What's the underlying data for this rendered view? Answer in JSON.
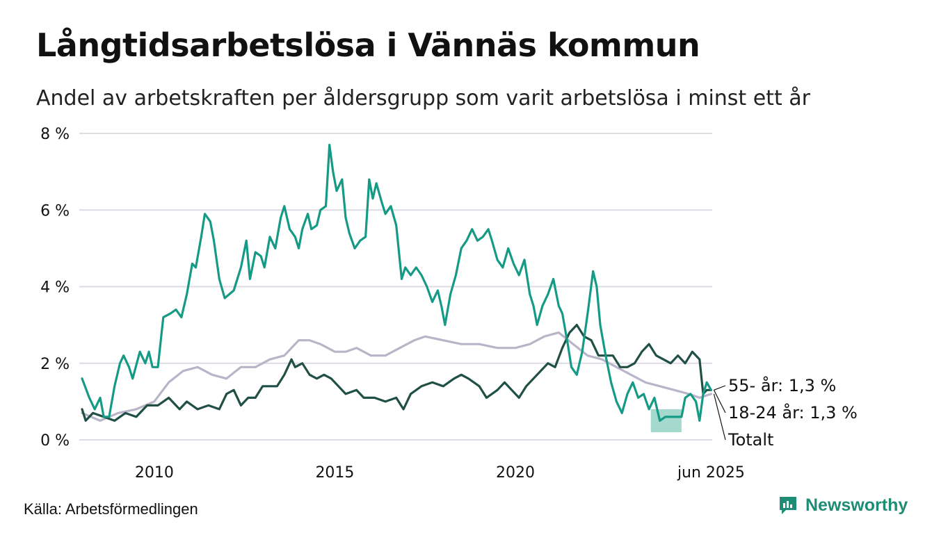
{
  "title": "Långtidsarbetslösa i Vännäs kommun",
  "subtitle": "Andel av arbetskraften per åldersgrupp som varit arbetslösa i minst ett år",
  "source": "Källa: Arbetsförmedlingen",
  "brand": "Newsworthy",
  "colors": {
    "young": "#159a85",
    "old": "#1f4f45",
    "total": "#b8b5c8",
    "grid": "#dddbe3",
    "band": "#8fcfc1",
    "brand": "#1f8c75"
  },
  "chart_data": {
    "type": "line",
    "xlim": [
      2008,
      2025.45
    ],
    "ylim": [
      0,
      8
    ],
    "yticks": [
      {
        "value": 0,
        "label": "0 %"
      },
      {
        "value": 2,
        "label": "2 %"
      },
      {
        "value": 4,
        "label": "4 %"
      },
      {
        "value": 6,
        "label": "6 %"
      },
      {
        "value": 8,
        "label": "8 %"
      }
    ],
    "xticks": [
      {
        "value": 2010,
        "label": "2010"
      },
      {
        "value": 2015,
        "label": "2015"
      },
      {
        "value": 2020,
        "label": "2020"
      },
      {
        "value": 2025.42,
        "label": "jun 2025"
      }
    ],
    "end_labels": [
      {
        "series": "55",
        "text": "55- år: 1,3 %"
      },
      {
        "series": "18",
        "text": "18-24 år: 1,3 %"
      },
      {
        "series": "tot",
        "text": "Totalt"
      }
    ],
    "band": {
      "x": [
        2023.75,
        2024.6
      ],
      "y": [
        0.2,
        0.8
      ]
    },
    "series": [
      {
        "id": "tot",
        "name": "Totalt",
        "points": [
          [
            2008.0,
            0.7
          ],
          [
            2008.5,
            0.5
          ],
          [
            2009.0,
            0.7
          ],
          [
            2009.5,
            0.8
          ],
          [
            2010.0,
            1.0
          ],
          [
            2010.4,
            1.5
          ],
          [
            2010.8,
            1.8
          ],
          [
            2011.2,
            1.9
          ],
          [
            2011.6,
            1.7
          ],
          [
            2012.0,
            1.6
          ],
          [
            2012.4,
            1.9
          ],
          [
            2012.8,
            1.9
          ],
          [
            2013.2,
            2.1
          ],
          [
            2013.6,
            2.2
          ],
          [
            2014.0,
            2.6
          ],
          [
            2014.3,
            2.6
          ],
          [
            2014.6,
            2.5
          ],
          [
            2015.0,
            2.3
          ],
          [
            2015.3,
            2.3
          ],
          [
            2015.6,
            2.4
          ],
          [
            2016.0,
            2.2
          ],
          [
            2016.4,
            2.2
          ],
          [
            2016.8,
            2.4
          ],
          [
            2017.2,
            2.6
          ],
          [
            2017.5,
            2.7
          ],
          [
            2018.0,
            2.6
          ],
          [
            2018.5,
            2.5
          ],
          [
            2019.0,
            2.5
          ],
          [
            2019.5,
            2.4
          ],
          [
            2020.0,
            2.4
          ],
          [
            2020.4,
            2.5
          ],
          [
            2020.8,
            2.7
          ],
          [
            2021.2,
            2.8
          ],
          [
            2021.6,
            2.5
          ],
          [
            2022.0,
            2.2
          ],
          [
            2022.4,
            2.1
          ],
          [
            2022.8,
            1.9
          ],
          [
            2023.2,
            1.7
          ],
          [
            2023.6,
            1.5
          ],
          [
            2024.0,
            1.4
          ],
          [
            2024.4,
            1.3
          ],
          [
            2024.8,
            1.2
          ],
          [
            2025.1,
            1.1
          ],
          [
            2025.42,
            1.2
          ]
        ]
      },
      {
        "id": "55",
        "name": "55- år",
        "points": [
          [
            2008.0,
            0.8
          ],
          [
            2008.1,
            0.5
          ],
          [
            2008.3,
            0.7
          ],
          [
            2008.6,
            0.6
          ],
          [
            2008.9,
            0.5
          ],
          [
            2009.2,
            0.7
          ],
          [
            2009.5,
            0.6
          ],
          [
            2009.8,
            0.9
          ],
          [
            2010.1,
            0.9
          ],
          [
            2010.4,
            1.1
          ],
          [
            2010.7,
            0.8
          ],
          [
            2010.9,
            1.0
          ],
          [
            2011.2,
            0.8
          ],
          [
            2011.5,
            0.9
          ],
          [
            2011.8,
            0.8
          ],
          [
            2012.0,
            1.2
          ],
          [
            2012.2,
            1.3
          ],
          [
            2012.4,
            0.9
          ],
          [
            2012.6,
            1.1
          ],
          [
            2012.8,
            1.1
          ],
          [
            2013.0,
            1.4
          ],
          [
            2013.2,
            1.4
          ],
          [
            2013.4,
            1.4
          ],
          [
            2013.6,
            1.7
          ],
          [
            2013.8,
            2.1
          ],
          [
            2013.9,
            1.9
          ],
          [
            2014.1,
            2.0
          ],
          [
            2014.3,
            1.7
          ],
          [
            2014.5,
            1.6
          ],
          [
            2014.7,
            1.7
          ],
          [
            2014.9,
            1.6
          ],
          [
            2015.1,
            1.4
          ],
          [
            2015.3,
            1.2
          ],
          [
            2015.6,
            1.3
          ],
          [
            2015.8,
            1.1
          ],
          [
            2016.1,
            1.1
          ],
          [
            2016.4,
            1.0
          ],
          [
            2016.7,
            1.1
          ],
          [
            2016.9,
            0.8
          ],
          [
            2017.1,
            1.2
          ],
          [
            2017.4,
            1.4
          ],
          [
            2017.7,
            1.5
          ],
          [
            2018.0,
            1.4
          ],
          [
            2018.3,
            1.6
          ],
          [
            2018.5,
            1.7
          ],
          [
            2018.7,
            1.6
          ],
          [
            2019.0,
            1.4
          ],
          [
            2019.2,
            1.1
          ],
          [
            2019.5,
            1.3
          ],
          [
            2019.7,
            1.5
          ],
          [
            2019.9,
            1.3
          ],
          [
            2020.1,
            1.1
          ],
          [
            2020.3,
            1.4
          ],
          [
            2020.5,
            1.6
          ],
          [
            2020.7,
            1.8
          ],
          [
            2020.9,
            2.0
          ],
          [
            2021.1,
            1.9
          ],
          [
            2021.3,
            2.4
          ],
          [
            2021.5,
            2.8
          ],
          [
            2021.7,
            3.0
          ],
          [
            2021.9,
            2.7
          ],
          [
            2022.1,
            2.6
          ],
          [
            2022.3,
            2.2
          ],
          [
            2022.5,
            2.2
          ],
          [
            2022.7,
            2.2
          ],
          [
            2022.9,
            1.9
          ],
          [
            2023.1,
            1.9
          ],
          [
            2023.3,
            2.0
          ],
          [
            2023.5,
            2.3
          ],
          [
            2023.7,
            2.5
          ],
          [
            2023.9,
            2.2
          ],
          [
            2024.1,
            2.1
          ],
          [
            2024.3,
            2.0
          ],
          [
            2024.5,
            2.2
          ],
          [
            2024.7,
            2.0
          ],
          [
            2024.9,
            2.3
          ],
          [
            2025.1,
            2.1
          ],
          [
            2025.2,
            1.2
          ],
          [
            2025.3,
            1.3
          ],
          [
            2025.42,
            1.3
          ]
        ]
      },
      {
        "id": "18",
        "name": "18-24 år",
        "points": [
          [
            2008.0,
            1.6
          ],
          [
            2008.2,
            1.1
          ],
          [
            2008.35,
            0.8
          ],
          [
            2008.5,
            1.1
          ],
          [
            2008.6,
            0.6
          ],
          [
            2008.75,
            0.6
          ],
          [
            2008.9,
            1.4
          ],
          [
            2009.05,
            2.0
          ],
          [
            2009.15,
            2.2
          ],
          [
            2009.3,
            1.9
          ],
          [
            2009.4,
            1.6
          ],
          [
            2009.6,
            2.3
          ],
          [
            2009.75,
            2.0
          ],
          [
            2009.85,
            2.3
          ],
          [
            2009.95,
            1.9
          ],
          [
            2010.1,
            1.9
          ],
          [
            2010.25,
            3.2
          ],
          [
            2010.45,
            3.3
          ],
          [
            2010.6,
            3.4
          ],
          [
            2010.75,
            3.2
          ],
          [
            2010.9,
            3.8
          ],
          [
            2011.05,
            4.6
          ],
          [
            2011.15,
            4.5
          ],
          [
            2011.3,
            5.3
          ],
          [
            2011.4,
            5.9
          ],
          [
            2011.55,
            5.7
          ],
          [
            2011.65,
            5.2
          ],
          [
            2011.8,
            4.2
          ],
          [
            2011.95,
            3.7
          ],
          [
            2012.2,
            3.9
          ],
          [
            2012.4,
            4.5
          ],
          [
            2012.55,
            5.2
          ],
          [
            2012.65,
            4.2
          ],
          [
            2012.8,
            4.9
          ],
          [
            2012.95,
            4.8
          ],
          [
            2013.05,
            4.5
          ],
          [
            2013.2,
            5.3
          ],
          [
            2013.35,
            5.0
          ],
          [
            2013.5,
            5.8
          ],
          [
            2013.6,
            6.1
          ],
          [
            2013.75,
            5.5
          ],
          [
            2013.9,
            5.3
          ],
          [
            2014.0,
            5.0
          ],
          [
            2014.1,
            5.5
          ],
          [
            2014.25,
            5.9
          ],
          [
            2014.35,
            5.5
          ],
          [
            2014.5,
            5.6
          ],
          [
            2014.6,
            6.0
          ],
          [
            2014.75,
            6.1
          ],
          [
            2014.85,
            7.7
          ],
          [
            2014.95,
            7.0
          ],
          [
            2015.05,
            6.5
          ],
          [
            2015.2,
            6.8
          ],
          [
            2015.3,
            5.8
          ],
          [
            2015.4,
            5.4
          ],
          [
            2015.55,
            5.0
          ],
          [
            2015.7,
            5.2
          ],
          [
            2015.85,
            5.3
          ],
          [
            2015.95,
            6.8
          ],
          [
            2016.05,
            6.3
          ],
          [
            2016.15,
            6.7
          ],
          [
            2016.3,
            6.2
          ],
          [
            2016.4,
            5.9
          ],
          [
            2016.55,
            6.1
          ],
          [
            2016.7,
            5.6
          ],
          [
            2016.85,
            4.2
          ],
          [
            2016.95,
            4.5
          ],
          [
            2017.1,
            4.3
          ],
          [
            2017.25,
            4.5
          ],
          [
            2017.4,
            4.3
          ],
          [
            2017.55,
            4.0
          ],
          [
            2017.7,
            3.6
          ],
          [
            2017.85,
            3.9
          ],
          [
            2017.95,
            3.5
          ],
          [
            2018.05,
            3.0
          ],
          [
            2018.2,
            3.8
          ],
          [
            2018.35,
            4.3
          ],
          [
            2018.5,
            5.0
          ],
          [
            2018.65,
            5.2
          ],
          [
            2018.8,
            5.5
          ],
          [
            2018.95,
            5.2
          ],
          [
            2019.1,
            5.3
          ],
          [
            2019.25,
            5.5
          ],
          [
            2019.35,
            5.2
          ],
          [
            2019.5,
            4.7
          ],
          [
            2019.65,
            4.5
          ],
          [
            2019.8,
            5.0
          ],
          [
            2019.95,
            4.6
          ],
          [
            2020.1,
            4.3
          ],
          [
            2020.25,
            4.7
          ],
          [
            2020.4,
            3.8
          ],
          [
            2020.5,
            3.5
          ],
          [
            2020.6,
            3.0
          ],
          [
            2020.75,
            3.5
          ],
          [
            2020.9,
            3.8
          ],
          [
            2021.05,
            4.2
          ],
          [
            2021.2,
            3.5
          ],
          [
            2021.3,
            3.3
          ],
          [
            2021.45,
            2.5
          ],
          [
            2021.55,
            1.9
          ],
          [
            2021.7,
            1.7
          ],
          [
            2021.85,
            2.3
          ],
          [
            2022.0,
            3.3
          ],
          [
            2022.15,
            4.4
          ],
          [
            2022.25,
            4.0
          ],
          [
            2022.35,
            3.0
          ],
          [
            2022.5,
            2.2
          ],
          [
            2022.65,
            1.5
          ],
          [
            2022.8,
            1.0
          ],
          [
            2022.95,
            0.7
          ],
          [
            2023.1,
            1.2
          ],
          [
            2023.25,
            1.5
          ],
          [
            2023.4,
            1.1
          ],
          [
            2023.55,
            1.2
          ],
          [
            2023.7,
            0.8
          ],
          [
            2023.85,
            1.1
          ],
          [
            2024.0,
            0.5
          ],
          [
            2024.15,
            0.6
          ],
          [
            2024.6,
            0.6
          ],
          [
            2024.7,
            1.1
          ],
          [
            2024.85,
            1.2
          ],
          [
            2025.0,
            1.0
          ],
          [
            2025.1,
            0.5
          ],
          [
            2025.2,
            1.2
          ],
          [
            2025.3,
            1.5
          ],
          [
            2025.42,
            1.3
          ]
        ]
      }
    ]
  }
}
